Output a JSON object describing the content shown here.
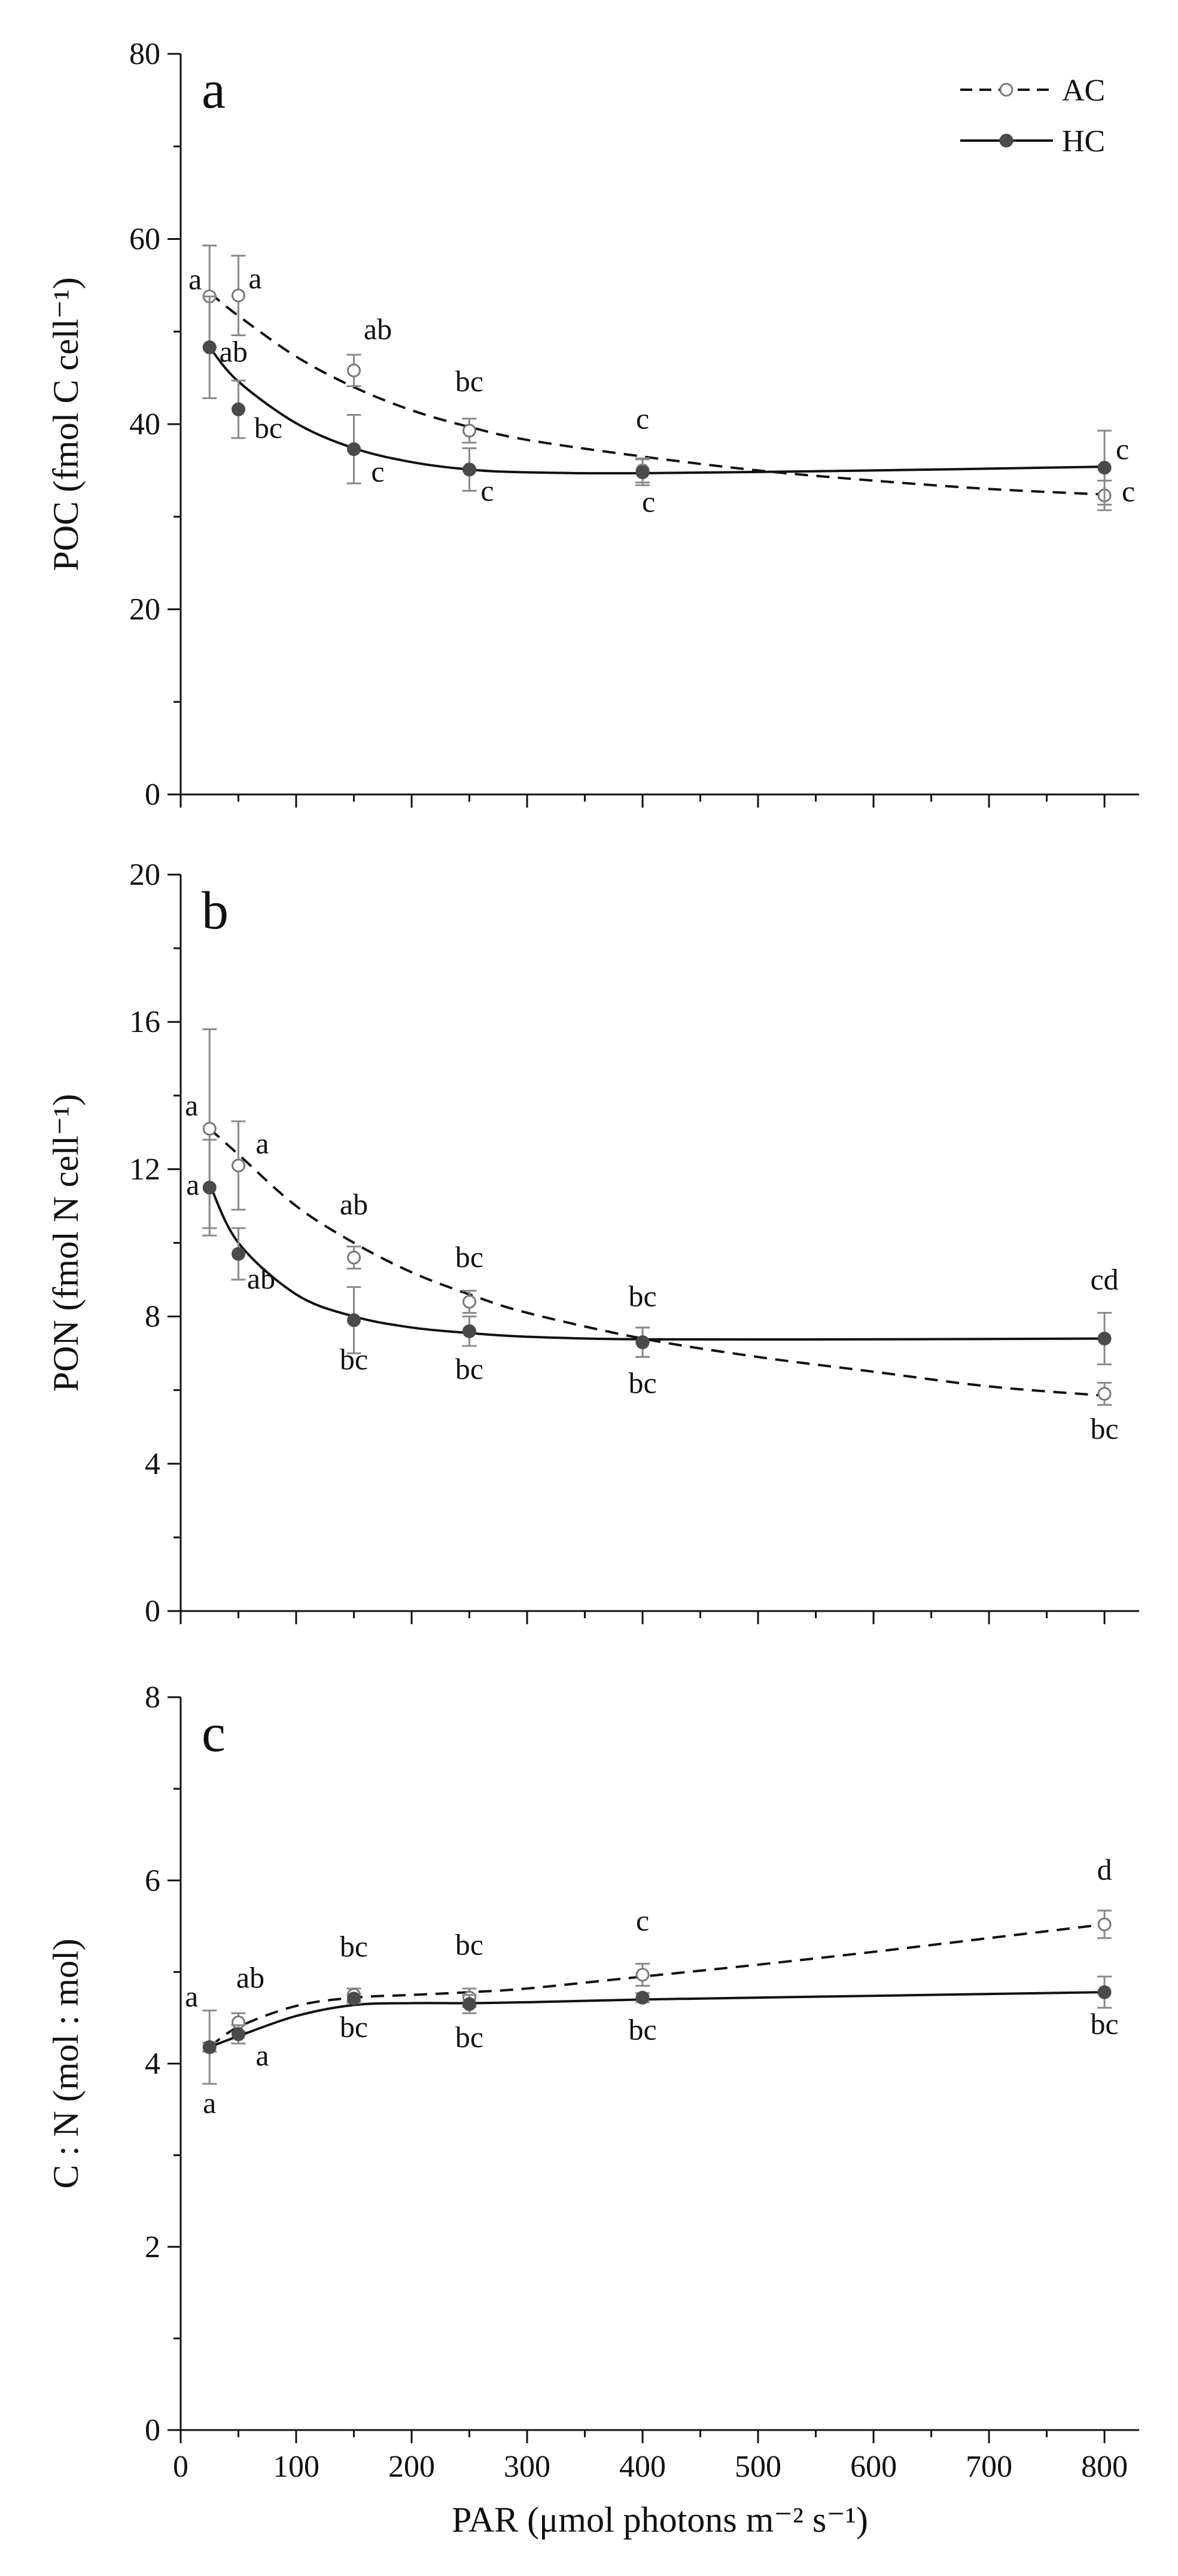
{
  "colors": {
    "ac": "#4a4a4a",
    "hc": "#4a4a4a",
    "error_bar": "#8a8a8a",
    "axis": "#111111"
  },
  "legend": [
    {
      "name": "AC",
      "style": "dashed line, open circle"
    },
    {
      "name": "HC",
      "style": "solid line, filled circle"
    }
  ],
  "chart_data": [
    {
      "type": "scatter",
      "panel": "a",
      "ylabel": "POC (fmol C cell⁻¹)",
      "xlim": [
        0,
        830
      ],
      "ylim": [
        0,
        80
      ],
      "yticks": [
        0,
        20,
        40,
        60,
        80
      ],
      "series": [
        {
          "name": "AC",
          "x": [
            25,
            50,
            150,
            250,
            400,
            800
          ],
          "y": [
            53.8,
            53.9,
            45.8,
            39.3,
            35.0,
            32.3
          ],
          "err": [
            5.5,
            4.3,
            1.7,
            1.3,
            1.3,
            1.6
          ],
          "letters": [
            "a",
            "a",
            "ab",
            "bc",
            "c",
            "c"
          ],
          "fit": [
            [
              25,
              54.2
            ],
            [
              50,
              51.7
            ],
            [
              100,
              47.3
            ],
            [
              150,
              44.0
            ],
            [
              200,
              41.5
            ],
            [
              250,
              39.7
            ],
            [
              300,
              38.3
            ],
            [
              400,
              36.5
            ],
            [
              500,
              35.0
            ],
            [
              600,
              33.9
            ],
            [
              700,
              33.0
            ],
            [
              800,
              32.4
            ]
          ]
        },
        {
          "name": "HC",
          "x": [
            25,
            50,
            150,
            250,
            400,
            800
          ],
          "y": [
            48.3,
            41.6,
            37.3,
            35.1,
            34.8,
            35.3
          ],
          "err": [
            5.5,
            3.1,
            3.7,
            2.3,
            1.4,
            4.0
          ],
          "letters": [
            "ab",
            "bc",
            "c",
            "c",
            "c",
            "c"
          ],
          "fit": [
            [
              25,
              48.3
            ],
            [
              50,
              44.6
            ],
            [
              100,
              40.1
            ],
            [
              150,
              37.4
            ],
            [
              200,
              35.9
            ],
            [
              250,
              35.1
            ],
            [
              300,
              34.8
            ],
            [
              400,
              34.7
            ],
            [
              600,
              35.0
            ],
            [
              800,
              35.4
            ]
          ]
        }
      ]
    },
    {
      "type": "scatter",
      "panel": "b",
      "ylabel": "PON (fmol N cell⁻¹)",
      "xlim": [
        0,
        830
      ],
      "ylim": [
        0,
        20
      ],
      "yticks": [
        0,
        4,
        8,
        12,
        16,
        20
      ],
      "series": [
        {
          "name": "AC",
          "x": [
            25,
            50,
            150,
            250,
            400,
            800
          ],
          "y": [
            13.1,
            12.1,
            9.6,
            8.4,
            7.3,
            5.9
          ],
          "err": [
            2.7,
            1.2,
            0.3,
            0.3,
            0.4,
            0.3
          ],
          "letters": [
            "a",
            "a",
            "ab",
            "bc",
            "bc",
            "bc"
          ],
          "fit": [
            [
              25,
              13.1
            ],
            [
              50,
              12.4
            ],
            [
              100,
              11.0
            ],
            [
              150,
              10.0
            ],
            [
              200,
              9.2
            ],
            [
              250,
              8.6
            ],
            [
              300,
              8.1
            ],
            [
              400,
              7.4
            ],
            [
              500,
              6.9
            ],
            [
              600,
              6.5
            ],
            [
              700,
              6.1
            ],
            [
              800,
              5.85
            ]
          ]
        },
        {
          "name": "HC",
          "x": [
            25,
            50,
            150,
            250,
            400,
            800
          ],
          "y": [
            11.5,
            9.7,
            7.9,
            7.6,
            7.3,
            7.4
          ],
          "err": [
            1.3,
            0.7,
            0.9,
            0.4,
            0.4,
            0.7
          ],
          "letters": [
            "a",
            "ab",
            "bc",
            "bc",
            "bc",
            "cd"
          ],
          "fit": [
            [
              25,
              11.6
            ],
            [
              50,
              10.0
            ],
            [
              100,
              8.6
            ],
            [
              150,
              8.0
            ],
            [
              200,
              7.7
            ],
            [
              250,
              7.55
            ],
            [
              300,
              7.45
            ],
            [
              400,
              7.38
            ],
            [
              600,
              7.38
            ],
            [
              800,
              7.4
            ]
          ]
        }
      ]
    },
    {
      "type": "scatter",
      "panel": "c",
      "ylabel": "C : N (mol : mol)",
      "xlabel": "PAR (μmol photons m⁻² s⁻¹)",
      "xlim": [
        0,
        830
      ],
      "ylim": [
        0,
        8
      ],
      "yticks": [
        0,
        2,
        4,
        6,
        8
      ],
      "xticks": [
        0,
        100,
        200,
        300,
        400,
        500,
        600,
        700,
        800
      ],
      "series": [
        {
          "name": "AC",
          "x": [
            25,
            50,
            150,
            250,
            400,
            800
          ],
          "y": [
            4.18,
            4.45,
            4.75,
            4.72,
            4.97,
            5.52
          ],
          "err": [
            0.4,
            0.1,
            0.07,
            0.1,
            0.12,
            0.15
          ],
          "letters": [
            "a",
            "ab",
            "bc",
            "bc",
            "c",
            "d"
          ],
          "fit": [
            [
              25,
              4.18
            ],
            [
              50,
              4.4
            ],
            [
              100,
              4.63
            ],
            [
              150,
              4.72
            ],
            [
              200,
              4.75
            ],
            [
              250,
              4.78
            ],
            [
              300,
              4.82
            ],
            [
              400,
              4.95
            ],
            [
              500,
              5.08
            ],
            [
              600,
              5.22
            ],
            [
              700,
              5.37
            ],
            [
              800,
              5.52
            ]
          ]
        },
        {
          "name": "HC",
          "x": [
            25,
            50,
            150,
            250,
            400,
            800
          ],
          "y": [
            4.18,
            4.32,
            4.71,
            4.65,
            4.72,
            4.78
          ],
          "err": [
            0.05,
            0.1,
            0.05,
            0.1,
            0.05,
            0.17
          ],
          "letters": [
            "a",
            "a",
            "bc",
            "bc",
            "bc",
            "bc"
          ],
          "fit": [
            [
              25,
              4.18
            ],
            [
              50,
              4.3
            ],
            [
              100,
              4.52
            ],
            [
              150,
              4.64
            ],
            [
              200,
              4.66
            ],
            [
              250,
              4.66
            ],
            [
              300,
              4.67
            ],
            [
              400,
              4.7
            ],
            [
              600,
              4.74
            ],
            [
              800,
              4.78
            ]
          ]
        }
      ]
    }
  ]
}
